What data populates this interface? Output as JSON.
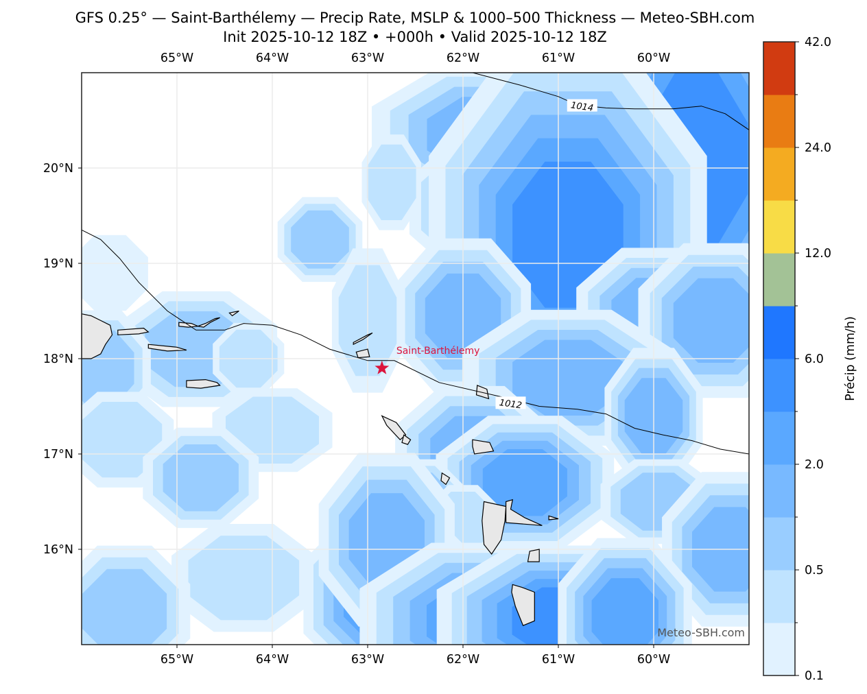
{
  "header": {
    "title_line1": "GFS 0.25° — Saint-Barthélemy — Precip Rate, MSLP & 1000–500 Thickness — Meteo-SBH.com",
    "title_line2": "Init 2025-10-12 18Z • +000h • Valid 2025-10-12 18Z"
  },
  "map": {
    "extent": {
      "lon_min": -66.0,
      "lon_max": -59.0,
      "lat_min": 15.0,
      "lat_max": 21.0
    },
    "lon_ticks": [
      {
        "value": -65,
        "label": "65°W"
      },
      {
        "value": -64,
        "label": "64°W"
      },
      {
        "value": -63,
        "label": "63°W"
      },
      {
        "value": -62,
        "label": "62°W"
      },
      {
        "value": -61,
        "label": "61°W"
      },
      {
        "value": -60,
        "label": "60°W"
      }
    ],
    "lat_ticks": [
      {
        "value": 20,
        "label": "20°N"
      },
      {
        "value": 19,
        "label": "19°N"
      },
      {
        "value": 18,
        "label": "18°N"
      },
      {
        "value": 17,
        "label": "17°N"
      },
      {
        "value": 16,
        "label": "16°N"
      }
    ],
    "location_marker": {
      "name": "Saint-Barthélemy",
      "lon": -62.85,
      "lat": 17.9,
      "color": "#dc143c",
      "icon": "star-icon"
    },
    "watermark": "Meteo-SBH.com",
    "isobars": [
      {
        "label": "1014",
        "label_lon": -60.75,
        "label_lat": 20.65,
        "points": [
          [
            -61.9,
            21.0
          ],
          [
            -61.4,
            20.87
          ],
          [
            -61.0,
            20.75
          ],
          [
            -60.8,
            20.66
          ],
          [
            -60.5,
            20.63
          ],
          [
            -60.2,
            20.62
          ],
          [
            -59.8,
            20.62
          ],
          [
            -59.5,
            20.65
          ],
          [
            -59.25,
            20.57
          ],
          [
            -59.0,
            20.4
          ]
        ]
      },
      {
        "label": "1012",
        "label_lon": -61.5,
        "label_lat": 17.53,
        "points": [
          [
            -66.0,
            19.35
          ],
          [
            -65.8,
            19.25
          ],
          [
            -65.6,
            19.05
          ],
          [
            -65.4,
            18.8
          ],
          [
            -65.1,
            18.5
          ],
          [
            -64.8,
            18.3
          ],
          [
            -64.5,
            18.3
          ],
          [
            -64.3,
            18.37
          ],
          [
            -64.0,
            18.35
          ],
          [
            -63.7,
            18.25
          ],
          [
            -63.4,
            18.1
          ],
          [
            -63.0,
            17.98
          ],
          [
            -62.72,
            17.98
          ],
          [
            -62.25,
            17.75
          ],
          [
            -61.6,
            17.6
          ],
          [
            -61.2,
            17.5
          ],
          [
            -60.8,
            17.47
          ],
          [
            -60.5,
            17.42
          ],
          [
            -60.2,
            17.27
          ],
          [
            -59.9,
            17.2
          ],
          [
            -59.6,
            17.14
          ],
          [
            -59.3,
            17.05
          ],
          [
            -59.0,
            17.0
          ]
        ]
      }
    ],
    "precip_cells": [
      {
        "lon": -61.75,
        "lat": 20.35,
        "level": 3,
        "rx": 0.55,
        "ry": 0.3
      },
      {
        "lon": -59.55,
        "lat": 20.1,
        "level": 5,
        "rx": 0.45,
        "ry": 0.85
      },
      {
        "lon": -61.75,
        "lat": 19.6,
        "level": 3,
        "rx": 0.35,
        "ry": 0.3
      },
      {
        "lon": -60.9,
        "lat": 19.3,
        "level": 5,
        "rx": 0.5,
        "ry": 0.7
      },
      {
        "lon": -62.75,
        "lat": 19.85,
        "level": 1,
        "rx": 0.15,
        "ry": 0.3
      },
      {
        "lon": -63.5,
        "lat": 19.25,
        "level": 2,
        "rx": 0.2,
        "ry": 0.2
      },
      {
        "lon": -65.7,
        "lat": 18.9,
        "level": 0,
        "rx": 0.3,
        "ry": 0.3
      },
      {
        "lon": -62.0,
        "lat": 18.45,
        "level": 3,
        "rx": 0.3,
        "ry": 0.35
      },
      {
        "lon": -63.0,
        "lat": 18.4,
        "level": 1,
        "rx": 0.2,
        "ry": 0.5
      },
      {
        "lon": -60.0,
        "lat": 18.45,
        "level": 3,
        "rx": 0.35,
        "ry": 0.3
      },
      {
        "lon": -59.35,
        "lat": 18.4,
        "level": 3,
        "rx": 0.35,
        "ry": 0.35
      },
      {
        "lon": -64.8,
        "lat": 18.1,
        "level": 2,
        "rx": 0.45,
        "ry": 0.3
      },
      {
        "lon": -65.8,
        "lat": 17.9,
        "level": 2,
        "rx": 0.25,
        "ry": 0.3
      },
      {
        "lon": -64.25,
        "lat": 18.0,
        "level": 1,
        "rx": 0.2,
        "ry": 0.2
      },
      {
        "lon": -60.9,
        "lat": 17.8,
        "level": 3,
        "rx": 0.5,
        "ry": 0.3
      },
      {
        "lon": -60.0,
        "lat": 17.4,
        "level": 3,
        "rx": 0.2,
        "ry": 0.3
      },
      {
        "lon": -64.0,
        "lat": 17.25,
        "level": 1,
        "rx": 0.4,
        "ry": 0.25
      },
      {
        "lon": -65.6,
        "lat": 17.15,
        "level": 1,
        "rx": 0.35,
        "ry": 0.3
      },
      {
        "lon": -64.75,
        "lat": 16.75,
        "level": 2,
        "rx": 0.3,
        "ry": 0.25
      },
      {
        "lon": -61.9,
        "lat": 17.0,
        "level": 3,
        "rx": 0.35,
        "ry": 0.3
      },
      {
        "lon": -61.35,
        "lat": 16.7,
        "level": 4,
        "rx": 0.35,
        "ry": 0.25
      },
      {
        "lon": -62.45,
        "lat": 16.5,
        "level": 2,
        "rx": 0.2,
        "ry": 0.2
      },
      {
        "lon": -62.0,
        "lat": 16.3,
        "level": 1,
        "rx": 0.2,
        "ry": 0.2
      },
      {
        "lon": -59.95,
        "lat": 16.5,
        "level": 2,
        "rx": 0.3,
        "ry": 0.2
      },
      {
        "lon": -59.2,
        "lat": 16.0,
        "level": 3,
        "rx": 0.3,
        "ry": 0.35
      },
      {
        "lon": -64.3,
        "lat": 15.7,
        "level": 1,
        "rx": 0.5,
        "ry": 0.35
      },
      {
        "lon": -65.55,
        "lat": 15.35,
        "level": 2,
        "rx": 0.35,
        "ry": 0.35
      },
      {
        "lon": -62.75,
        "lat": 15.5,
        "level": 5,
        "rx": 0.3,
        "ry": 0.3
      },
      {
        "lon": -62.8,
        "lat": 16.1,
        "level": 3,
        "rx": 0.3,
        "ry": 0.4
      },
      {
        "lon": -61.8,
        "lat": 15.25,
        "level": 4,
        "rx": 0.5,
        "ry": 0.3
      },
      {
        "lon": -60.95,
        "lat": 15.25,
        "level": 5,
        "rx": 0.45,
        "ry": 0.25
      },
      {
        "lon": -60.3,
        "lat": 15.3,
        "level": 4,
        "rx": 0.25,
        "ry": 0.3
      }
    ],
    "islands": [
      {
        "name": "Hispaniola-east",
        "points": [
          [
            -66.0,
            18.47
          ],
          [
            -65.9,
            18.45
          ],
          [
            -65.8,
            18.4
          ],
          [
            -65.7,
            18.35
          ],
          [
            -65.68,
            18.25
          ],
          [
            -65.75,
            18.15
          ],
          [
            -65.8,
            18.05
          ],
          [
            -65.9,
            18.0
          ],
          [
            -66.0,
            18.0
          ]
        ]
      },
      {
        "name": "Puerto-Rico-east",
        "points": [
          [
            -65.62,
            18.3
          ],
          [
            -65.35,
            18.32
          ],
          [
            -65.3,
            18.28
          ],
          [
            -65.4,
            18.26
          ],
          [
            -65.62,
            18.25
          ]
        ]
      },
      {
        "name": "Vieques",
        "points": [
          [
            -65.3,
            18.15
          ],
          [
            -65.0,
            18.12
          ],
          [
            -64.9,
            18.09
          ],
          [
            -65.1,
            18.08
          ],
          [
            -65.3,
            18.11
          ]
        ]
      },
      {
        "name": "St-Croix",
        "points": [
          [
            -64.9,
            17.77
          ],
          [
            -64.7,
            17.78
          ],
          [
            -64.58,
            17.75
          ],
          [
            -64.55,
            17.72
          ],
          [
            -64.75,
            17.69
          ],
          [
            -64.9,
            17.7
          ]
        ]
      },
      {
        "name": "St-Thomas",
        "points": [
          [
            -64.98,
            18.38
          ],
          [
            -64.85,
            18.37
          ],
          [
            -64.78,
            18.34
          ],
          [
            -64.88,
            18.33
          ],
          [
            -64.98,
            18.34
          ]
        ]
      },
      {
        "name": "St-John-Tortola",
        "points": [
          [
            -64.78,
            18.34
          ],
          [
            -64.7,
            18.37
          ],
          [
            -64.6,
            18.42
          ],
          [
            -64.55,
            18.43
          ],
          [
            -64.65,
            18.38
          ],
          [
            -64.72,
            18.33
          ]
        ]
      },
      {
        "name": "Virgin-Gorda",
        "points": [
          [
            -64.45,
            18.48
          ],
          [
            -64.35,
            18.5
          ],
          [
            -64.42,
            18.45
          ]
        ]
      },
      {
        "name": "Anguilla",
        "points": [
          [
            -63.15,
            18.17
          ],
          [
            -63.0,
            18.25
          ],
          [
            -62.95,
            18.27
          ],
          [
            -63.05,
            18.2
          ],
          [
            -63.15,
            18.15
          ]
        ]
      },
      {
        "name": "St-Martin",
        "points": [
          [
            -63.12,
            18.07
          ],
          [
            -63.0,
            18.1
          ],
          [
            -62.98,
            18.02
          ],
          [
            -63.1,
            18.01
          ]
        ]
      },
      {
        "name": "St-Kitts-Nevis",
        "points": [
          [
            -62.85,
            17.4
          ],
          [
            -62.7,
            17.33
          ],
          [
            -62.6,
            17.2
          ],
          [
            -62.66,
            17.15
          ],
          [
            -62.8,
            17.3
          ]
        ]
      },
      {
        "name": "Nevis",
        "points": [
          [
            -62.62,
            17.2
          ],
          [
            -62.55,
            17.15
          ],
          [
            -62.58,
            17.1
          ],
          [
            -62.64,
            17.12
          ]
        ]
      },
      {
        "name": "Antigua",
        "points": [
          [
            -61.9,
            17.15
          ],
          [
            -61.72,
            17.12
          ],
          [
            -61.68,
            17.03
          ],
          [
            -61.88,
            17.0
          ],
          [
            -61.9,
            17.08
          ]
        ]
      },
      {
        "name": "Barbuda",
        "points": [
          [
            -61.85,
            17.72
          ],
          [
            -61.75,
            17.68
          ],
          [
            -61.73,
            17.58
          ],
          [
            -61.86,
            17.62
          ]
        ]
      },
      {
        "name": "Montserrat",
        "points": [
          [
            -62.22,
            16.8
          ],
          [
            -62.14,
            16.75
          ],
          [
            -62.18,
            16.68
          ],
          [
            -62.23,
            16.72
          ]
        ]
      },
      {
        "name": "Guadeloupe-Basse-Terre",
        "points": [
          [
            -61.78,
            16.5
          ],
          [
            -61.55,
            16.45
          ],
          [
            -61.56,
            16.3
          ],
          [
            -61.6,
            16.1
          ],
          [
            -61.7,
            15.95
          ],
          [
            -61.78,
            16.05
          ],
          [
            -61.8,
            16.3
          ]
        ]
      },
      {
        "name": "Guadeloupe-Grande-Terre",
        "points": [
          [
            -61.55,
            16.5
          ],
          [
            -61.48,
            16.52
          ],
          [
            -61.5,
            16.42
          ],
          [
            -61.35,
            16.33
          ],
          [
            -61.17,
            16.25
          ],
          [
            -61.55,
            16.28
          ]
        ]
      },
      {
        "name": "Marie-Galante",
        "points": [
          [
            -61.3,
            15.98
          ],
          [
            -61.2,
            16.0
          ],
          [
            -61.2,
            15.87
          ],
          [
            -61.32,
            15.87
          ]
        ]
      },
      {
        "name": "Desirade",
        "points": [
          [
            -61.1,
            16.35
          ],
          [
            -61.0,
            16.32
          ],
          [
            -61.1,
            16.31
          ]
        ]
      },
      {
        "name": "Dominica",
        "points": [
          [
            -61.48,
            15.63
          ],
          [
            -61.38,
            15.6
          ],
          [
            -61.25,
            15.55
          ],
          [
            -61.25,
            15.25
          ],
          [
            -61.37,
            15.2
          ],
          [
            -61.45,
            15.4
          ],
          [
            -61.49,
            15.55
          ]
        ]
      }
    ],
    "coast_lines_fill": "#e8e8e8",
    "grid_color": "#ececec"
  },
  "colorbar": {
    "label": "Précip (mm/h)",
    "tick_labels": [
      "0.1",
      "0.5",
      "2.0",
      "6.0",
      "12.0",
      "24.0",
      "42.0"
    ],
    "levels": [
      0.1,
      0.25,
      0.5,
      1.0,
      2.0,
      4.0,
      6.0,
      8.0,
      12.0,
      18.0,
      24.0,
      32.0,
      42.0
    ],
    "colors": [
      "#e1f2ff",
      "#bfe3ff",
      "#99cdff",
      "#78b9ff",
      "#5aa8ff",
      "#3d92ff",
      "#1f77ff",
      "#a3c296",
      "#f8dc46",
      "#f4ab21",
      "#e97c13",
      "#d13b11"
    ]
  }
}
